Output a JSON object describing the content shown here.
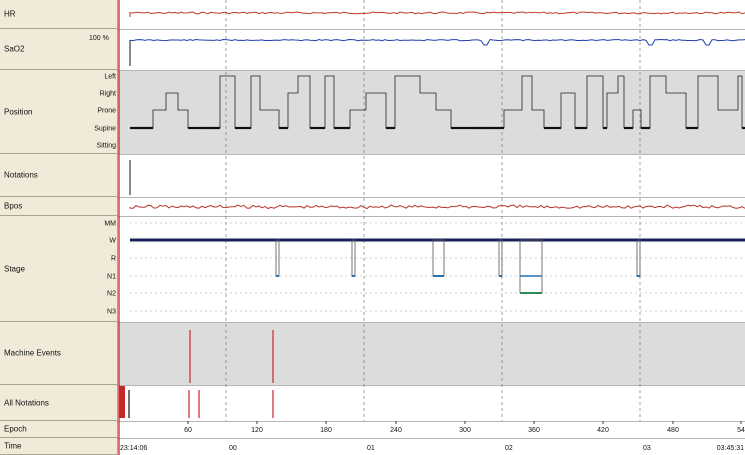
{
  "rows": {
    "hr": "HR",
    "sao2": "SaO2",
    "position": "Position",
    "notations": "Notations",
    "bpos": "Bpos",
    "stage": "Stage",
    "machine_events": "Machine Events",
    "all_notations": "All Notations",
    "epoch": "Epoch",
    "time": "Time"
  },
  "sao2_scale": "100 %",
  "position_levels": [
    "Left",
    "Right",
    "Prone",
    "Supine",
    "Sitting"
  ],
  "stage_levels": [
    "MM",
    "W",
    "R",
    "N1",
    "N2",
    "N3"
  ],
  "epoch_ticks": [
    "60",
    "120",
    "180",
    "240",
    "300",
    "360",
    "420",
    "480",
    "54"
  ],
  "time_ticks": [
    "00",
    "01",
    "02",
    "03"
  ],
  "time_start": "23:14:06",
  "time_end": "03:45:31",
  "colors": {
    "hr_trace": "#c0392b",
    "sao2_trace": "#1f3fae",
    "bpos_trace": "#b8322c",
    "cursor": "#c62828",
    "stage_wake": "#1b1f5c",
    "label_bg": "#f1ead9",
    "band_gray": "#dcdcdc"
  }
}
